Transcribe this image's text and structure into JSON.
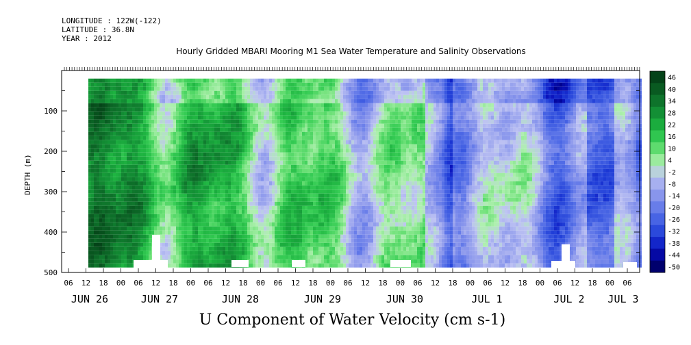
{
  "header": {
    "longitude": "LONGITUDE : 122W(-122)",
    "latitude": "LATITUDE : 36.8N",
    "year": "YEAR : 2012"
  },
  "chart_data": {
    "type": "heatmap",
    "title": "Hourly Gridded MBARI Mooring M1 Sea Water Temperature and Salinity Observations",
    "xlabel": "U Component of Water Velocity (cm s-1)",
    "ylabel": "DEPTH (m)",
    "ylim": [
      500,
      0
    ],
    "y_ticks": [
      100,
      200,
      300,
      400,
      500
    ],
    "data_depth_range": [
      20,
      485
    ],
    "x_hour_ticks": [
      "06",
      "12",
      "18",
      "00",
      "06",
      "12",
      "18",
      "00",
      "06",
      "12",
      "18",
      "00",
      "06",
      "12",
      "18",
      "00",
      "06",
      "12",
      "18",
      "00",
      "06",
      "12",
      "18",
      "00",
      "06",
      "12",
      "18",
      "00",
      "06",
      "12",
      "18",
      "00",
      "06"
    ],
    "x_day_labels": [
      "JUN 26",
      "JUN 27",
      "JUN 28",
      "JUN 29",
      "JUN 30",
      "JUL 1",
      "JUL 2",
      "JUL 3"
    ],
    "colorbar": {
      "labels": [
        "46",
        "40",
        "34",
        "28",
        "22",
        "16",
        "10",
        "4",
        "-2",
        "-8",
        "-14",
        "-20",
        "-26",
        "-32",
        "-38",
        "-44",
        "-50"
      ],
      "range": [
        -50,
        50
      ]
    },
    "pattern": "Positive (eastward, green) velocities dominate Jun 26 - Jun 29 throughout the water column; negative (westward, blue) bands appear from Jun 29 through Jul 3, strongest near Jun 30 18:00 - Jul 1 and early Jul 3."
  }
}
